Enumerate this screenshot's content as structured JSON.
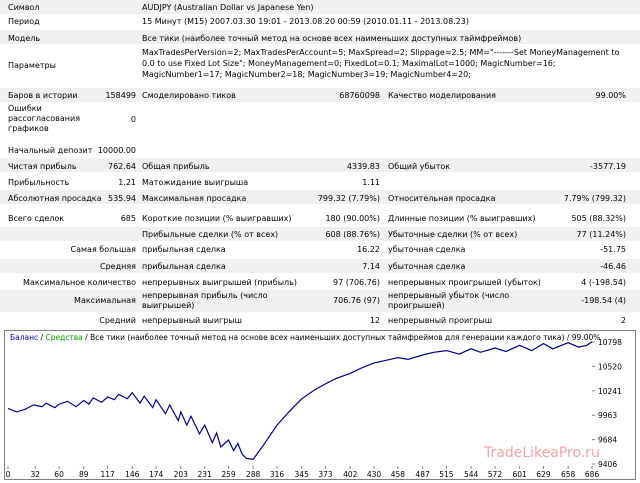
{
  "report": {
    "symbol_label": "Символ",
    "symbol_value": "AUDJPY (Australian Dollar vs Japanese Yen)",
    "period_label": "Период",
    "period_value": "15 Минут (M15) 2007.03.30 19:01 - 2013.08.20 00:59 (2010.01.11 - 2013.08.23)",
    "model_label": "Модель",
    "model_value": "Все тики (наиболее точный метод на основе всех наименьших доступных таймфреймов)",
    "params_label": "Параметры",
    "params_value": "MaxTradesPerVersion=2; MaxTradesPerAccount=5; MaxSpread=2; Slippage=2.5; MM=\"-------Set MoneyManagement to 0.0 to use Fixed Lot Size\"; MoneyManagement=0; FixedLot=0.1; MaximalLot=1000; MagicNumber=16; MagicNumber1=17; MagicNumber2=18; MagicNumber3=19; MagicNumber4=20;",
    "bars_label": "Баров в истории",
    "bars_value": "158499",
    "ticks_label": "Смоделировано тиков",
    "ticks_value": "68760098",
    "quality_label": "Качество моделирования",
    "quality_value": "99.00%",
    "errors_label": "Ошибки рассогласования графиков",
    "errors_value": "0",
    "deposit_label": "Начальный депозит",
    "deposit_value": "10000.00",
    "net_label": "Чистая прибыль",
    "net_value": "762.64",
    "gross_profit_label": "Общая прибыль",
    "gross_profit_value": "4339.83",
    "gross_loss_label": "Общий убыток",
    "gross_loss_value": "-3577.19",
    "pf_label": "Прибыльность",
    "pf_value": "1.21",
    "expected_label": "Матожидание выигрыша",
    "expected_value": "1.11",
    "abs_dd_label": "Абсолютная просадка",
    "abs_dd_value": "535.94",
    "max_dd_label": "Максимальная просадка",
    "max_dd_value": "799.32 (7.79%)",
    "rel_dd_label": "Относительная просадка",
    "rel_dd_value": "7.79% (799.32)",
    "trades_label": "Всего сделок",
    "trades_value": "685",
    "short_label": "Короткие позиции (% выигравших)",
    "short_value": "180 (90.00%)",
    "long_label": "Длинные позиции (% выигравших)",
    "long_value": "505 (88.32%)",
    "profit_trades_label": "Прибыльные сделки (% от всех)",
    "profit_trades_value": "608 (88.76%)",
    "loss_trades_label": "Убыточные сделки (% от всех)",
    "loss_trades_value": "77 (11.24%)",
    "largest_label": "Самая большая",
    "largest_profit_label": "прибыльная сделка",
    "largest_profit_value": "16.22",
    "largest_loss_label": "убыточная сделка",
    "largest_loss_value": "-51.75",
    "average_label": "Средняя",
    "avg_profit_label": "прибыльная сделка",
    "avg_profit_value": "7.14",
    "avg_loss_label": "убыточная сделка",
    "avg_loss_value": "-46.46",
    "max_count_label": "Максимальное количество",
    "max_wins_label": "непрерывных выигрышей (прибыль)",
    "max_wins_value": "97 (706.76)",
    "max_losses_label": "непрерывных проигрышей (убыток)",
    "max_losses_value": "4 (-198.54)",
    "maximal_label": "Максимальная",
    "max_profit_label": "непрерывная прибыль (число выигрышей)",
    "max_profit_value": "706.76 (97)",
    "max_loss_label": "непрерывный убыток (число проигрышей)",
    "max_loss_value": "-198.54 (4)",
    "avg2_label": "Средний",
    "avg_wins_label": "непрерывный выигрыш",
    "avg_wins_value": "12",
    "avg_losses_label": "непрерывный проигрыш",
    "avg_losses_value": "2"
  },
  "chart": {
    "title_balance": "Баланс",
    "title_sep1": " / ",
    "title_equity": "Средства",
    "title_rest": " / Все тики (наиболее точный метод на основе всех наименьших доступных таймфреймов для генерации каждого тика) / 99.00%",
    "watermark": "TradeLikeaPro.ru",
    "line_color": "#00008b"
  },
  "chart_data": {
    "type": "line",
    "x_ticks": [
      "0",
      "32",
      "60",
      "89",
      "117",
      "146",
      "174",
      "203",
      "231",
      "259",
      "288",
      "316",
      "345",
      "373",
      "402",
      "430",
      "458",
      "487",
      "515",
      "544",
      "572",
      "601",
      "629",
      "658",
      "686"
    ],
    "y_ticks": [
      "10798",
      "10520",
      "10241",
      "9963",
      "9684",
      "9406"
    ],
    "ylim": [
      9406,
      10798
    ],
    "xlim": [
      0,
      686
    ],
    "series": [
      {
        "x": [
          0,
          10,
          20,
          30,
          40,
          45,
          55,
          60,
          70,
          80,
          89,
          95,
          100,
          110,
          117,
          125,
          130,
          140,
          146,
          155,
          160,
          170,
          174,
          185,
          190,
          200,
          203,
          210,
          215,
          225,
          231,
          240,
          245,
          250,
          259,
          265,
          270,
          275,
          280,
          288,
          300,
          316,
          330,
          345,
          360,
          373,
          385,
          402,
          415,
          430,
          445,
          458,
          470,
          487,
          500,
          515,
          530,
          544,
          555,
          572,
          585,
          601,
          615,
          629,
          640,
          658,
          670,
          680,
          686
        ],
        "y": [
          10040,
          10000,
          10030,
          10080,
          10060,
          10100,
          10050,
          10090,
          10120,
          10060,
          10130,
          10090,
          10160,
          10110,
          10170,
          10140,
          10200,
          10150,
          10220,
          10100,
          10180,
          10050,
          10140,
          9980,
          10080,
          9900,
          10000,
          9850,
          9950,
          9750,
          9850,
          9650,
          9760,
          9600,
          9680,
          9560,
          9640,
          9520,
          9470,
          9460,
          9620,
          9850,
          10000,
          10150,
          10250,
          10320,
          10380,
          10440,
          10500,
          10560,
          10590,
          10620,
          10600,
          10650,
          10680,
          10700,
          10660,
          10720,
          10680,
          10730,
          10690,
          10760,
          10700,
          10780,
          10720,
          10790,
          10740,
          10760,
          10800
        ]
      }
    ]
  }
}
